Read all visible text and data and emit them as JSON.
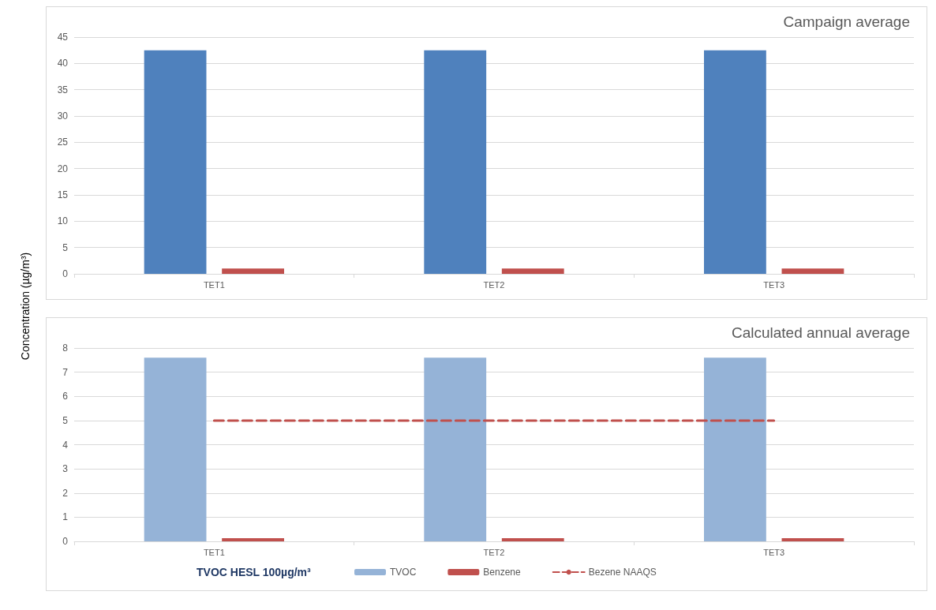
{
  "chart_data": [
    {
      "type": "bar",
      "title": "Campaign average",
      "ylabel": "Concentration (µg/m³)",
      "categories": [
        "TET1",
        "TET2",
        "TET3"
      ],
      "series": [
        {
          "color": "#4f81bd",
          "values": [
            42.5,
            42.5,
            42.5
          ]
        },
        {
          "color": "#c0504d",
          "values": [
            1,
            1,
            1
          ]
        }
      ],
      "ylim": [
        0,
        45
      ],
      "yticks": [
        0,
        5,
        10,
        15,
        20,
        25,
        30,
        35,
        40,
        45
      ],
      "grid": "y",
      "legend": false
    },
    {
      "type": "bar",
      "title": "Calculated annual average",
      "categories": [
        "TET1",
        "TET2",
        "TET3"
      ],
      "series": [
        {
          "name": "TVOC",
          "color": "#95b3d7",
          "values": [
            7.6,
            7.6,
            7.6
          ]
        },
        {
          "name": "Benzene",
          "color": "#c0504d",
          "values": [
            0.13,
            0.13,
            0.13
          ]
        },
        {
          "name": "Bezene NAAQS",
          "type": "line",
          "color": "#c0504d",
          "line_style": "dashed",
          "marker": "none",
          "values": [
            5,
            5,
            5
          ]
        }
      ],
      "ylim": [
        0,
        8
      ],
      "yticks": [
        0,
        1,
        2,
        3,
        4,
        5,
        6,
        7,
        8
      ],
      "grid": "y",
      "legend": "bottom",
      "annotations": [
        "TVOC HESL 100µg/m³"
      ]
    }
  ]
}
